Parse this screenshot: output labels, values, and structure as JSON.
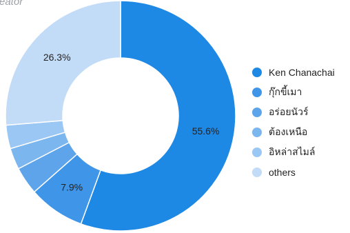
{
  "chart_data": {
    "type": "pie",
    "title": "reator",
    "categories": [
      "Ken Chanachai",
      "กุ๊กขี้เมา",
      "อร่อยนัวร์",
      "ต้องเหนือ",
      "อิหล่าสไมล์",
      "others"
    ],
    "values": [
      55.6,
      7.9,
      3.9,
      3.0,
      3.3,
      26.3
    ],
    "data_labels": [
      "55.6%",
      "7.9%",
      "",
      "",
      "",
      "26.3%"
    ],
    "colors": [
      "#1e88e5",
      "#3f95e8",
      "#5da4eb",
      "#7cb6ef",
      "#9ac7f3",
      "#c2dcf7"
    ],
    "donut": true,
    "legend_position": "right"
  }
}
